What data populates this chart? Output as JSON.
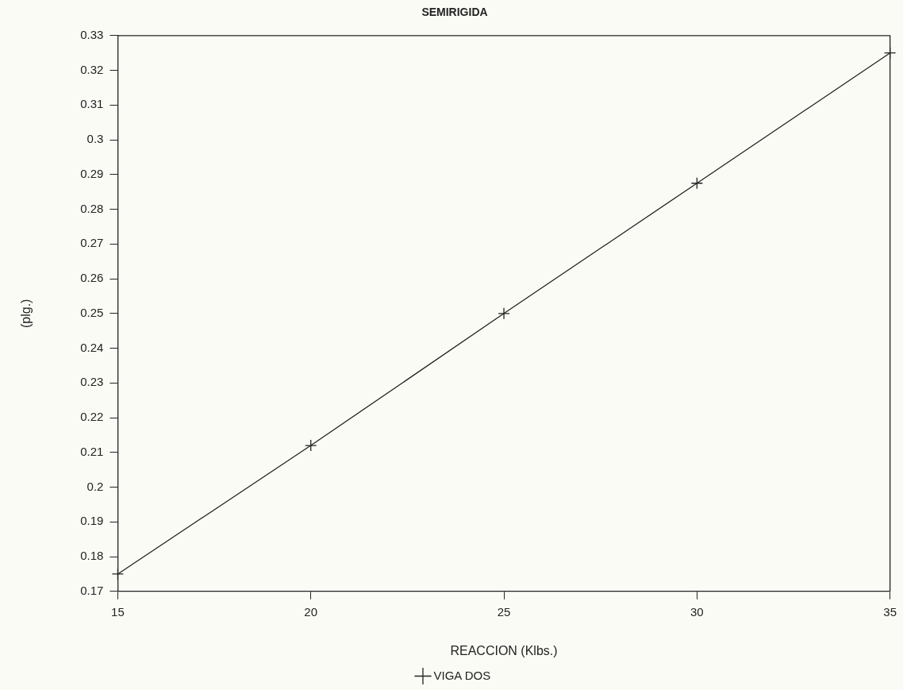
{
  "chart_data": {
    "type": "line",
    "title": "SEMIRIGIDA",
    "xlabel": "REACCION (Klbs.)",
    "ylabel": "(plg.)",
    "x": [
      15,
      20,
      25,
      30,
      35
    ],
    "series": [
      {
        "name": "VIGA DOS",
        "color": "#222222",
        "values": [
          0.175,
          0.212,
          0.25,
          0.2875,
          0.325
        ]
      }
    ],
    "xlim": [
      15,
      35
    ],
    "xticks": [
      15,
      20,
      25,
      30,
      35
    ],
    "ylim": [
      0.17,
      0.33
    ],
    "yticks": [
      0.17,
      0.18,
      0.19,
      0.2,
      0.21,
      0.22,
      0.23,
      0.24,
      0.25,
      0.26,
      0.27,
      0.28,
      0.29,
      0.3,
      0.31,
      0.32,
      0.33
    ],
    "grid": false,
    "legend": "bottom",
    "marker": "cross",
    "line_style": "solid"
  }
}
